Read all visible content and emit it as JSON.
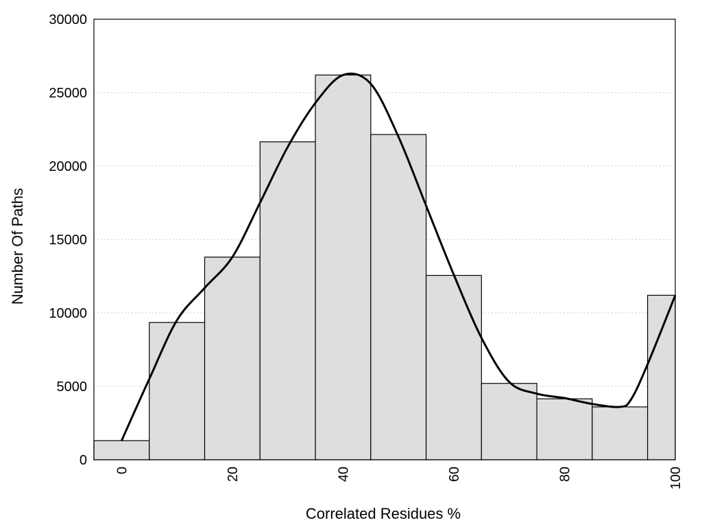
{
  "chart_data": {
    "type": "bar",
    "xlabel": "Correlated Residues %",
    "ylabel": "Number Of Paths",
    "xlim": [
      -5,
      100
    ],
    "ylim": [
      0,
      30000
    ],
    "x_ticks": [
      "0",
      "20",
      "40",
      "60",
      "80",
      "100"
    ],
    "x_tick_values": [
      0,
      20,
      40,
      60,
      80,
      100
    ],
    "y_ticks": [
      "0",
      "5000",
      "10000",
      "15000",
      "20000",
      "25000",
      "30000"
    ],
    "y_tick_values": [
      0,
      5000,
      10000,
      15000,
      20000,
      25000,
      30000
    ],
    "grid": "horizontal dotted",
    "bin_width": 10,
    "bins": [
      {
        "center": 0,
        "value": 1300
      },
      {
        "center": 10,
        "value": 9350
      },
      {
        "center": 20,
        "value": 13800
      },
      {
        "center": 30,
        "value": 21650
      },
      {
        "center": 40,
        "value": 26200
      },
      {
        "center": 50,
        "value": 22150
      },
      {
        "center": 60,
        "value": 12550
      },
      {
        "center": 70,
        "value": 5200
      },
      {
        "center": 80,
        "value": 4150
      },
      {
        "center": 90,
        "value": 3600
      },
      {
        "center": 100,
        "value": 11200
      }
    ],
    "curve": {
      "x": [
        0,
        5,
        10,
        15,
        20,
        25,
        30,
        35,
        40,
        45,
        50,
        55,
        60,
        65,
        70,
        75,
        80,
        85,
        90,
        92,
        95,
        100
      ],
      "y": [
        1300,
        5500,
        9500,
        11700,
        13800,
        17500,
        21300,
        24300,
        26200,
        25600,
        22000,
        17300,
        12600,
        8300,
        5300,
        4500,
        4200,
        3800,
        3600,
        4100,
        6500,
        11200
      ]
    },
    "colors": {
      "bar_fill": "#dedede",
      "bar_stroke": "#000000",
      "curve": "#000000"
    }
  }
}
